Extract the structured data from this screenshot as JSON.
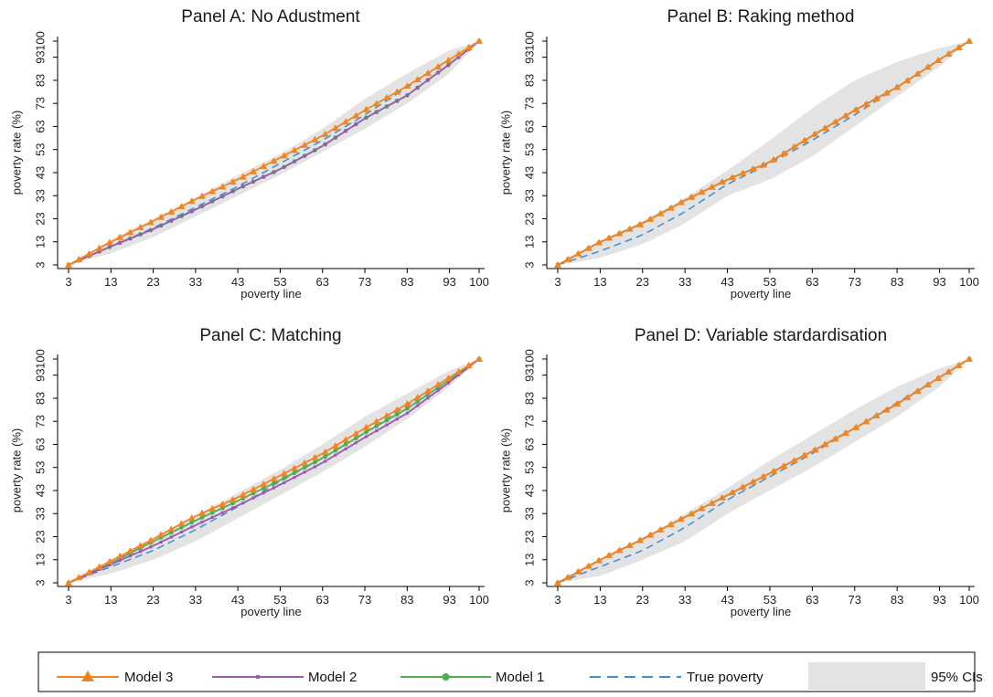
{
  "chart_data": [
    {
      "type": "line",
      "title": "Panel A: No Adustment",
      "xlabel": "poverty line",
      "ylabel": "poverty rate (%)",
      "x_ticks": [
        "3",
        "13",
        "23",
        "33",
        "43",
        "53",
        "63",
        "73",
        "83",
        "93",
        "100"
      ],
      "y_ticks": [
        "3",
        "13",
        "23",
        "33",
        "43",
        "53",
        "63",
        "73",
        "83",
        "93",
        "100"
      ],
      "xlim": [
        3,
        100
      ],
      "ylim": [
        3,
        100
      ],
      "x": [
        3,
        13,
        23,
        33,
        43,
        53,
        63,
        73,
        83,
        93,
        100
      ],
      "series": [
        {
          "name": "Model 3",
          "values": [
            3,
            13,
            22,
            31.5,
            40,
            49.5,
            59,
            70,
            80.5,
            92,
            100
          ]
        },
        {
          "name": "Model 2",
          "values": [
            3,
            11,
            18.5,
            27,
            36,
            44.5,
            54.5,
            66.5,
            76.5,
            90,
            100
          ]
        },
        {
          "name": "Model 1",
          "values": [
            3,
            11,
            18.5,
            27,
            36,
            44.5,
            54.5,
            66.5,
            76.5,
            90,
            100
          ]
        },
        {
          "name": "True poverty",
          "values": [
            3,
            11,
            19,
            28,
            37,
            47,
            57,
            68,
            80,
            92,
            100
          ]
        }
      ],
      "ci_lower": [
        3,
        8,
        15,
        24,
        33,
        42,
        52,
        62,
        73,
        86,
        100
      ],
      "ci_upper": [
        3,
        14,
        23,
        32,
        42,
        51,
        62,
        75,
        86,
        96,
        100
      ]
    },
    {
      "type": "line",
      "title": "Panel B: Raking method",
      "xlabel": "poverty line",
      "ylabel": "poverty rate (%)",
      "x_ticks": [
        "3",
        "13",
        "23",
        "33",
        "43",
        "53",
        "63",
        "73",
        "83",
        "93",
        "100"
      ],
      "y_ticks": [
        "3",
        "13",
        "23",
        "33",
        "43",
        "53",
        "63",
        "73",
        "83",
        "93",
        "100"
      ],
      "xlim": [
        3,
        100
      ],
      "ylim": [
        3,
        100
      ],
      "x": [
        3,
        13,
        23,
        33,
        43,
        53,
        63,
        73,
        83,
        93,
        100
      ],
      "series": [
        {
          "name": "Model 3",
          "values": [
            3,
            13,
            21,
            31,
            40,
            47.5,
            59,
            70,
            80,
            92,
            100
          ]
        },
        {
          "name": "Model 2",
          "values": [
            3,
            13,
            21,
            31,
            40,
            47.5,
            59,
            70,
            80,
            92,
            100
          ]
        },
        {
          "name": "Model 1",
          "values": [
            3,
            13,
            21,
            31,
            40,
            47.5,
            59,
            70,
            80,
            92,
            100
          ]
        },
        {
          "name": "True poverty",
          "values": [
            3,
            9,
            16,
            26,
            38,
            47,
            57,
            68,
            80,
            92,
            100
          ]
        }
      ],
      "ci_lower": [
        3,
        6,
        12,
        21,
        33,
        40,
        50,
        63,
        76,
        89,
        100
      ],
      "ci_upper": [
        3,
        13,
        22,
        32,
        44,
        57,
        71,
        83,
        91,
        97,
        100
      ]
    },
    {
      "type": "line",
      "title": "Panel C: Matching",
      "xlabel": "poverty line",
      "ylabel": "poverty rate (%)",
      "x_ticks": [
        "3",
        "13",
        "23",
        "33",
        "43",
        "53",
        "63",
        "73",
        "83",
        "93",
        "100"
      ],
      "y_ticks": [
        "3",
        "13",
        "23",
        "33",
        "43",
        "53",
        "63",
        "73",
        "83",
        "93",
        "100"
      ],
      "xlim": [
        3,
        100
      ],
      "ylim": [
        3,
        100
      ],
      "x": [
        3,
        13,
        23,
        33,
        43,
        53,
        63,
        73,
        83,
        93,
        100
      ],
      "series": [
        {
          "name": "Model 3",
          "values": [
            3,
            12.5,
            22,
            32,
            40,
            49.5,
            59,
            70,
            80.5,
            92,
            100
          ]
        },
        {
          "name": "Model 2",
          "values": [
            3,
            11,
            19,
            28,
            36.5,
            45.5,
            55,
            66,
            76.5,
            90,
            100
          ]
        },
        {
          "name": "Model 1",
          "values": [
            3,
            11.5,
            21,
            30,
            38.5,
            47.5,
            57,
            68,
            78.5,
            91,
            100
          ]
        },
        {
          "name": "True poverty",
          "values": [
            3,
            10,
            17,
            26,
            36,
            47,
            57,
            68,
            80,
            92,
            100
          ]
        }
      ],
      "ci_lower": [
        3,
        7,
        13,
        21,
        31,
        41,
        51,
        62,
        74,
        88,
        100
      ],
      "ci_upper": [
        3,
        12,
        22,
        32,
        42,
        52,
        63,
        75,
        85,
        95,
        100
      ]
    },
    {
      "type": "line",
      "title": "Panel D: Variable stardardisation",
      "xlabel": "poverty line",
      "ylabel": "poverty rate (%)",
      "x_ticks": [
        "3",
        "13",
        "23",
        "33",
        "43",
        "53",
        "63",
        "73",
        "83",
        "93",
        "100"
      ],
      "y_ticks": [
        "3",
        "13",
        "23",
        "33",
        "43",
        "53",
        "63",
        "73",
        "83",
        "93",
        "100"
      ],
      "xlim": [
        3,
        100
      ],
      "ylim": [
        3,
        100
      ],
      "x": [
        3,
        13,
        23,
        33,
        43,
        53,
        63,
        73,
        83,
        93,
        100
      ],
      "series": [
        {
          "name": "Model 3",
          "values": [
            3,
            13,
            22,
            31.5,
            41,
            50.5,
            60,
            70,
            80.5,
            92,
            100
          ]
        },
        {
          "name": "Model 2",
          "values": [
            3,
            13,
            22,
            31.5,
            41,
            50.5,
            60,
            70,
            80.5,
            92,
            100
          ]
        },
        {
          "name": "Model 1",
          "values": [
            3,
            13,
            22,
            31.5,
            41,
            50.5,
            60,
            70,
            80.5,
            92,
            100
          ]
        },
        {
          "name": "True poverty",
          "values": [
            3,
            10,
            17,
            27,
            39,
            49,
            59,
            70,
            81,
            92,
            100
          ]
        }
      ],
      "ci_lower": [
        3,
        6,
        13,
        21,
        33,
        43,
        53,
        64,
        75,
        88,
        100
      ],
      "ci_upper": [
        3,
        13,
        22,
        33,
        44,
        56,
        67,
        78,
        88,
        96,
        100
      ]
    }
  ],
  "legend": {
    "items": [
      {
        "label": "Model 3",
        "color": "#F28522",
        "marker": "triangle",
        "style": "solid"
      },
      {
        "label": "Model 2",
        "color": "#9B59B6",
        "marker": "square",
        "style": "solid"
      },
      {
        "label": "Model 1",
        "color": "#4CAF50",
        "marker": "circle",
        "style": "solid"
      },
      {
        "label": "True poverty",
        "color": "#3B8ED8",
        "marker": "none",
        "style": "dashed"
      },
      {
        "label": "95% CIs",
        "color": "#E3E3E3",
        "marker": "band",
        "style": "fill"
      }
    ]
  }
}
